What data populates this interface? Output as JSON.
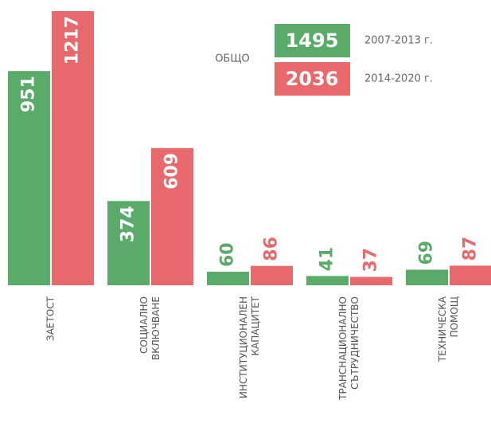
{
  "chart_data": {
    "type": "bar",
    "categories": [
      [
        "ЗАЕТОСТ"
      ],
      [
        "СОЦИАЛНО",
        "ВКЛЮЧВАНЕ"
      ],
      [
        "ИНСТИТУЦИОНАЛЕН",
        "КАПАЦИТЕТ"
      ],
      [
        "ТРАНСНАЦИОНАЛНО",
        "СЪТРУДНИЧЕСТВО"
      ],
      [
        "ТЕХНИЧЕСКА",
        "ПОМОЩ"
      ]
    ],
    "series": [
      {
        "name": "2007-2013 г.",
        "color": "#5aab6a",
        "values": [
          951,
          374,
          60,
          41,
          69
        ],
        "total": 1495
      },
      {
        "name": "2014-2020 г.",
        "color": "#e8696b",
        "values": [
          1217,
          609,
          86,
          37,
          87
        ],
        "total": 2036
      }
    ],
    "total_label": "ОБЩО"
  }
}
